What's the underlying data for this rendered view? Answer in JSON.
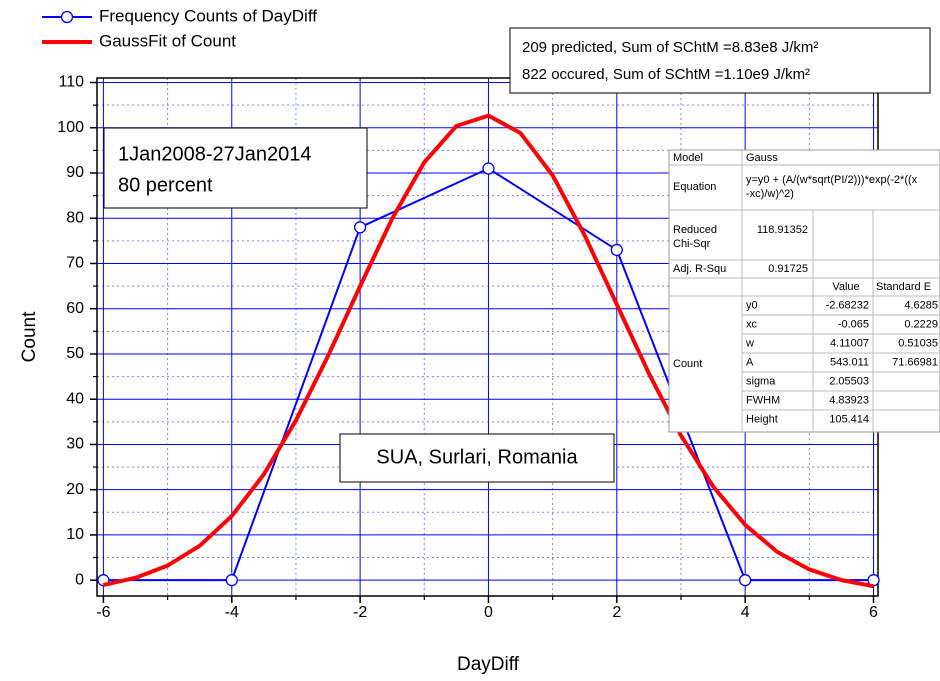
{
  "chart_data": {
    "type": "line",
    "xlabel": "DayDiff",
    "ylabel": "Count",
    "xlim": [
      -6.1,
      6.07
    ],
    "ylim": [
      -3.5,
      111
    ],
    "xticks": [
      -6,
      -4,
      -2,
      0,
      2,
      4,
      6
    ],
    "yticks": [
      0,
      10,
      20,
      30,
      40,
      50,
      60,
      70,
      80,
      90,
      100,
      110
    ],
    "xminor": [
      -5,
      -3,
      -1,
      1,
      3,
      5
    ],
    "yminor": [
      5,
      15,
      25,
      35,
      45,
      55,
      65,
      75,
      85,
      95,
      105
    ],
    "grid": true,
    "legend": "top-left",
    "series": [
      {
        "name": "Frequency Counts of DayDiff",
        "color": "#0000ff",
        "marker": "circle",
        "x": [
          -6,
          -4,
          -2,
          0,
          2,
          4,
          6
        ],
        "values": [
          0,
          0,
          78,
          91,
          73,
          0,
          0
        ]
      },
      {
        "name": "GaussFit of Count",
        "color": "#ff0000",
        "x": [
          -6,
          -5.5,
          -5,
          -4.5,
          -4,
          -3.5,
          -3,
          -2.5,
          -2,
          -1.5,
          -1,
          -0.5,
          0,
          0.5,
          1,
          1.5,
          2,
          2.5,
          3,
          3.5,
          4,
          4.5,
          5,
          5.5,
          6
        ],
        "values": [
          -1.05,
          0.51,
          3.22,
          7.59,
          14.17,
          23.39,
          35.33,
          49.56,
          64.98,
          79.93,
          92.37,
          100.39,
          102.68,
          98.82,
          89.48,
          76.2,
          60.95,
          45.69,
          31.98,
          20.73,
          12.23,
          6.26,
          2.37,
          0.01,
          -1.33
        ]
      }
    ],
    "annotations": {
      "summary": [
        "209 predicted, Sum of SChtM =8.83e8 J/km²",
        "822 occured,   Sum of SChtM =1.10e9 J/km²"
      ],
      "period": [
        "1Jan2008-27Jan2014",
        "80 percent"
      ],
      "station": "SUA, Surlari, Romania"
    },
    "fit_table": {
      "model": [
        "Model",
        "Gauss"
      ],
      "equation": [
        "Equation",
        [
          "y=y0 + (A/(w*sqrt(PI/2)))*exp(-2*((x",
          "-xc)/w)^2)"
        ]
      ],
      "reduced_chi_sqr": [
        [
          "Reduced",
          "Chi-Sqr"
        ],
        "118.91352"
      ],
      "adj_r_squ": [
        "Adj. R-Squ",
        "0.91725"
      ],
      "columns": [
        "Value",
        "Standard E"
      ],
      "group": "Count",
      "params": [
        [
          "y0",
          "-2.68232",
          "4.6285"
        ],
        [
          "xc",
          "-0.065",
          "0.2229"
        ],
        [
          "w",
          "4.11007",
          "0.51035"
        ],
        [
          "A",
          "543.011",
          "71.66981"
        ],
        [
          "sigma",
          "2.05503"
        ],
        [
          "FWHM",
          "4.83923"
        ],
        [
          "Height",
          "105.414"
        ]
      ]
    }
  }
}
